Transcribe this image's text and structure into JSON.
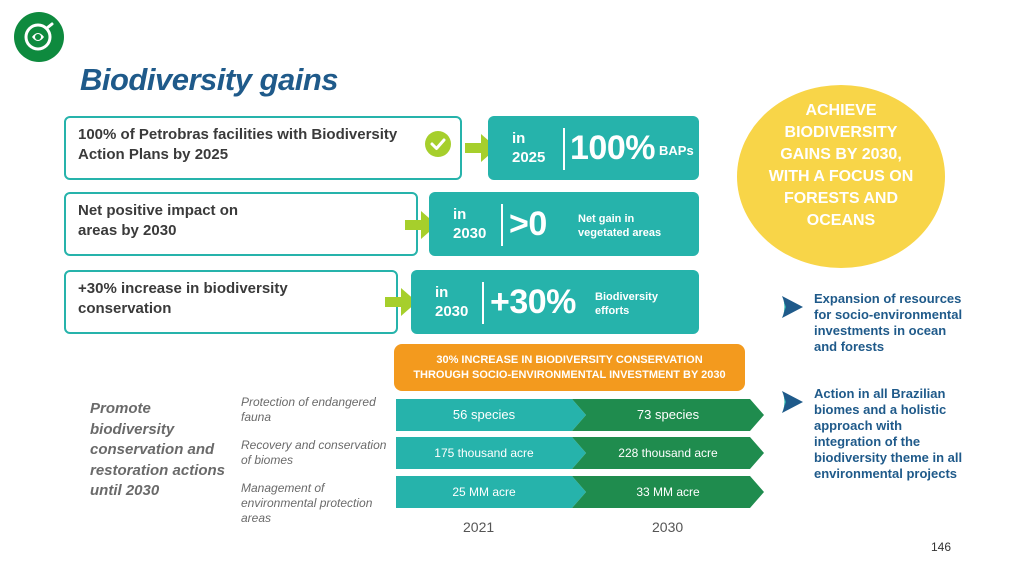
{
  "title": "Biodiversity gains",
  "goals": [
    {
      "text": "100% of Petrobras facilities with Biodiversity Action Plans by 2025",
      "in_label": "in",
      "year": "2025",
      "value": "100%",
      "desc": "BAPs"
    },
    {
      "text": "Net positive impact on areas by 2030",
      "in_label": "in",
      "year": "2030",
      "value": ">0",
      "desc": "Net gain in vegetated areas"
    },
    {
      "text": "+30% increase in biodiversity conservation",
      "in_label": "in",
      "year": "2030",
      "value": "+30%",
      "desc": "Biodiversity efforts"
    }
  ],
  "circle_text": "ACHIEVE BIODIVERSITY GAINS BY 2030, WITH A FOCUS ON FORESTS AND OCEANS",
  "bullets": [
    "Expansion of resources for socio-environmental investments in ocean and forests",
    "Action in all Brazilian biomes and a holistic approach with integration of the biodiversity theme in all environmental projects"
  ],
  "orange_banner": "30% INCREASE IN BIODIVERSITY CONSERVATION THROUGH SOCIO-ENVIRONMENTAL INVESTMENT BY 2030",
  "promote_text": "Promote biodiversity conservation and restoration actions until 2030",
  "rows": [
    {
      "label": "Protection of endangered fauna",
      "v2021": "56 species",
      "v2030": "73 species"
    },
    {
      "label": "Recovery and conservation of biomes",
      "v2021": "175 thousand acre",
      "v2030": "228 thousand acre"
    },
    {
      "label": "Management of environmental protection areas",
      "v2021": "25 MM acre",
      "v2030": "33 MM acre"
    }
  ],
  "years": [
    "2021",
    "2030"
  ],
  "page_number": "146",
  "colors": {
    "teal": "#26b3ab",
    "dark_green": "#1f8c4e",
    "lime": "#a6cf2c",
    "orange": "#f39a1e",
    "yellow": "#f8d548",
    "navy": "#1f5a8a"
  }
}
